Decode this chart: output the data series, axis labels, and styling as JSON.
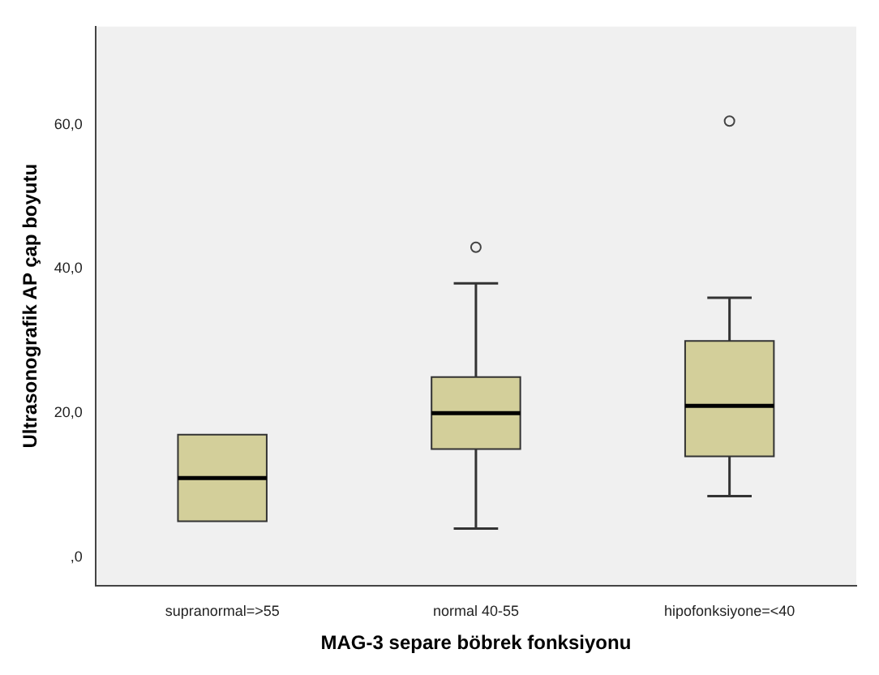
{
  "chart_data": {
    "type": "box",
    "xlabel": "MAG-3 separe böbrek fonksiyonu",
    "ylabel": "Ultrasonografik AP çap boyutu",
    "categories": [
      "supranormal=>55",
      "normal 40-55",
      "hipofonksiyone=<40"
    ],
    "color": "#d3cf9a",
    "boxes": [
      {
        "low": 5,
        "q1": 5,
        "median": 11,
        "q3": 17,
        "high": 17
      },
      {
        "low": 4,
        "q1": 15,
        "median": 20,
        "q3": 25,
        "high": 38,
        "outliers": [
          43
        ]
      },
      {
        "low": 8.5,
        "q1": 14,
        "median": 21,
        "q3": 30,
        "high": 36,
        "outliers": [
          60.5
        ]
      }
    ],
    "ylim": [
      -3.9,
      73.6
    ],
    "yticks": [
      {
        "value": 0,
        "label": ",0"
      },
      {
        "value": 20,
        "label": "20,0"
      },
      {
        "value": 40,
        "label": "40,0"
      },
      {
        "value": 60,
        "label": "60,0"
      }
    ],
    "grid": false,
    "legend": false
  }
}
